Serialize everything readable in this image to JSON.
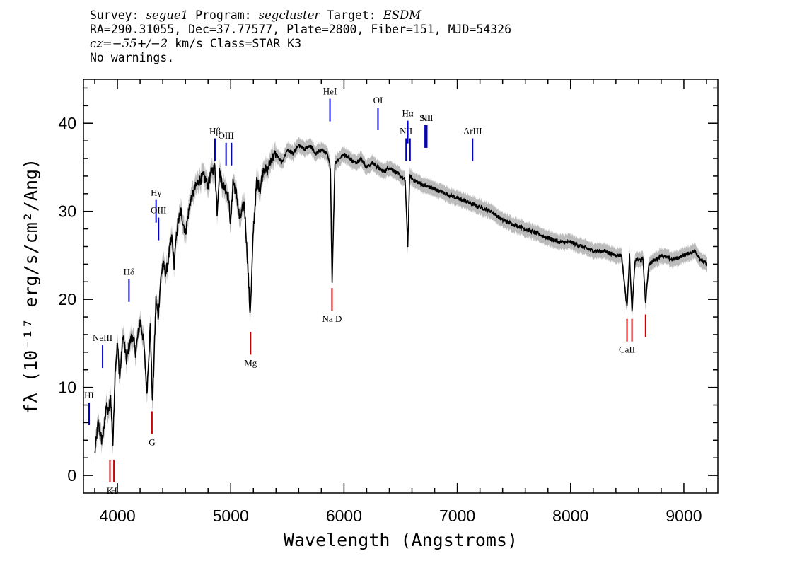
{
  "header": {
    "survey_label": "Survey:",
    "survey": "segue1",
    "program_label": "Program:",
    "program": "segcluster",
    "target_label": "Target:",
    "target": "ESDM",
    "line2": "RA=290.31055, Dec=37.77577, Plate=2800, Fiber=151, MJD=54326",
    "cz_label": "cz",
    "cz_value": "=−55+/−2",
    "cz_rest": " km/s Class=STAR K3",
    "line4": "No warnings."
  },
  "chart_data": {
    "type": "line",
    "xlabel": "Wavelength (Angstroms)",
    "ylabel": "fλ (10⁻¹⁷ erg/s/cm²/Ang)",
    "xlim": [
      3700,
      9300
    ],
    "ylim": [
      -2,
      45
    ],
    "x_ticks": [
      4000,
      5000,
      6000,
      7000,
      8000,
      9000
    ],
    "y_ticks": [
      0,
      10,
      20,
      30,
      40
    ],
    "grid": false,
    "colors": {
      "spectrum": "#000000",
      "error": "#bbbbbb",
      "emission": "#0000cc",
      "absorption": "#cc0000"
    },
    "series": [
      {
        "x": [
          3800,
          3830,
          3860,
          3880,
          3900,
          3920,
          3940,
          3960,
          3980,
          4000,
          4020,
          4050,
          4080,
          4100,
          4130,
          4160,
          4200,
          4230,
          4260,
          4290,
          4310,
          4340,
          4360,
          4380,
          4400,
          4430,
          4460,
          4480,
          4500,
          4530,
          4560,
          4600,
          4640,
          4680,
          4720,
          4760,
          4800,
          4830,
          4860,
          4880,
          4900,
          4930,
          4960,
          4980,
          5000,
          5020,
          5050,
          5080,
          5120,
          5150,
          5170,
          5180,
          5200,
          5230,
          5260,
          5290,
          5320,
          5360,
          5400,
          5450,
          5500,
          5550,
          5600,
          5650,
          5700,
          5750,
          5800,
          5850,
          5880,
          5895,
          5920,
          5960,
          6000,
          6050,
          6100,
          6150,
          6200,
          6250,
          6300,
          6350,
          6400,
          6450,
          6500,
          6540,
          6563,
          6580,
          6620,
          6700,
          6800,
          6900,
          7000,
          7100,
          7200,
          7300,
          7400,
          7500,
          7600,
          7700,
          7800,
          7900,
          8000,
          8100,
          8200,
          8300,
          8400,
          8450,
          8498,
          8520,
          8542,
          8570,
          8600,
          8640,
          8662,
          8690,
          8750,
          8800,
          8900,
          9000,
          9100,
          9150,
          9200
        ],
        "y": [
          2.5,
          6.0,
          4.0,
          5.0,
          8.0,
          7.0,
          9.0,
          3.5,
          12.0,
          15.0,
          11.0,
          16.0,
          13.0,
          14.5,
          16.0,
          14.0,
          17.5,
          15.5,
          9.5,
          17.0,
          8.0,
          20.0,
          18.0,
          22.0,
          24.0,
          23.0,
          25.5,
          27.0,
          24.0,
          28.5,
          30.0,
          27.5,
          31.0,
          32.5,
          33.5,
          34.0,
          33.0,
          34.5,
          35.0,
          30.0,
          34.5,
          33.0,
          32.5,
          31.5,
          28.5,
          33.5,
          32.0,
          29.0,
          31.0,
          24.0,
          18.5,
          20.5,
          28.0,
          33.5,
          32.5,
          35.0,
          34.5,
          36.0,
          36.5,
          35.5,
          37.0,
          36.5,
          37.5,
          37.0,
          37.5,
          36.5,
          37.0,
          36.5,
          35.0,
          22.0,
          35.5,
          36.0,
          36.5,
          36.0,
          35.5,
          36.0,
          35.0,
          35.5,
          35.0,
          34.5,
          35.0,
          34.5,
          34.0,
          33.5,
          26.0,
          34.0,
          33.5,
          33.0,
          32.5,
          32.0,
          31.5,
          31.0,
          30.5,
          30.0,
          29.0,
          28.5,
          28.0,
          27.5,
          27.0,
          26.5,
          26.5,
          26.0,
          25.5,
          25.5,
          25.0,
          25.0,
          19.0,
          25.0,
          18.5,
          24.5,
          24.5,
          24.5,
          19.5,
          24.0,
          24.5,
          25.0,
          24.5,
          25.0,
          25.5,
          24.5,
          24.0
        ]
      }
    ],
    "emission_lines": [
      {
        "label": "HI",
        "x": 3750,
        "y": 7
      },
      {
        "label": "NeIII",
        "x": 3869,
        "y": 13.5
      },
      {
        "label": "Hδ",
        "x": 4102,
        "y": 21
      },
      {
        "label": "Hγ",
        "x": 4341,
        "y": 30
      },
      {
        "label": "OIII",
        "x": 4363,
        "y": 28
      },
      {
        "label": "Hβ",
        "x": 4861,
        "y": 37
      },
      {
        "label": "OIII",
        "x": 4959,
        "y": 36.5
      },
      {
        "label": "",
        "x": 5007,
        "y": 36.5
      },
      {
        "label": "HeI",
        "x": 5876,
        "y": 41.5
      },
      {
        "label": "OI",
        "x": 6300,
        "y": 40.5
      },
      {
        "label": "NII",
        "x": 6548,
        "y": 37
      },
      {
        "label": "Hα",
        "x": 6563,
        "y": 39
      },
      {
        "label": "",
        "x": 6583,
        "y": 37
      },
      {
        "label": "SII",
        "x": 6716,
        "y": 38.5
      },
      {
        "label": "NII",
        "x": 6731,
        "y": 38.5
      },
      {
        "label": "ArIII",
        "x": 7135,
        "y": 37
      }
    ],
    "absorption_lines": [
      {
        "label": "K",
        "x": 3934,
        "y": 0.5
      },
      {
        "label": "H",
        "x": 3969,
        "y": 0.5
      },
      {
        "label": "G",
        "x": 4305,
        "y": 6
      },
      {
        "label": "Mg",
        "x": 5175,
        "y": 15
      },
      {
        "label": "Na D",
        "x": 5894,
        "y": 20
      },
      {
        "label": "CaII",
        "x": 8498,
        "y": 16.5
      },
      {
        "label": "",
        "x": 8542,
        "y": 16.5
      },
      {
        "label": "",
        "x": 8662,
        "y": 17
      }
    ]
  }
}
